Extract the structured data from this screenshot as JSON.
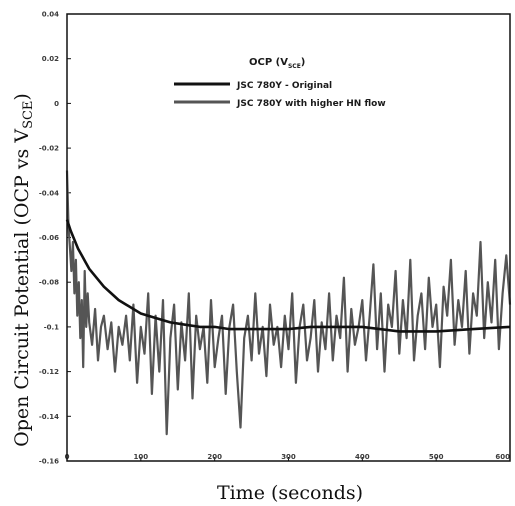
{
  "chart_data": {
    "type": "line",
    "title": "",
    "xlabel": "Time (seconds)",
    "ylabel": "Open Circuit Potential (OCP vs V",
    "ylabel_sub": "SCE",
    "ylabel_close": ")",
    "xlim": [
      0,
      600
    ],
    "ylim": [
      -0.16,
      0.04
    ],
    "x_ticks": [
      0,
      100,
      200,
      300,
      400,
      500,
      600
    ],
    "x_tick_labels": [
      "0",
      "100",
      "200",
      "300",
      "400",
      "500",
      "600"
    ],
    "y_ticks": [
      0.04,
      0.02,
      0,
      -0.02,
      -0.04,
      -0.06,
      -0.08,
      -0.1,
      -0.12,
      -0.14,
      -0.16
    ],
    "y_tick_labels": [
      "0.04",
      "0.02",
      "0",
      "-0.02",
      "-0.04",
      "-0.06",
      "-0.08",
      "-0.1",
      "-0.12",
      "-0.14",
      "-0.16"
    ],
    "grid": false,
    "legend": {
      "placement": "top-right",
      "title": "OCP (V",
      "title_sub": "SCE",
      "title_close": ")"
    },
    "series": [
      {
        "name": "JSC 780Y - Original",
        "color": "#111111",
        "x": [
          0,
          2,
          5,
          10,
          15,
          20,
          25,
          30,
          40,
          50,
          60,
          70,
          80,
          90,
          100,
          120,
          140,
          160,
          180,
          200,
          220,
          240,
          260,
          280,
          300,
          330,
          360,
          400,
          450,
          500,
          550,
          600
        ],
        "y": [
          -0.052,
          -0.054,
          -0.057,
          -0.061,
          -0.065,
          -0.068,
          -0.071,
          -0.074,
          -0.078,
          -0.082,
          -0.085,
          -0.088,
          -0.09,
          -0.092,
          -0.094,
          -0.096,
          -0.098,
          -0.099,
          -0.1,
          -0.1,
          -0.101,
          -0.101,
          -0.101,
          -0.101,
          -0.101,
          -0.1,
          -0.1,
          -0.1,
          -0.102,
          -0.102,
          -0.101,
          -0.1
        ]
      },
      {
        "name": "JSC 780Y with higher HN flow",
        "color": "#555555",
        "x": [
          0,
          2,
          4,
          6,
          8,
          10,
          12,
          14,
          16,
          18,
          20,
          22,
          24,
          26,
          28,
          30,
          34,
          38,
          42,
          46,
          50,
          55,
          60,
          65,
          70,
          75,
          80,
          85,
          90,
          95,
          100,
          105,
          110,
          115,
          120,
          125,
          130,
          135,
          140,
          145,
          150,
          155,
          160,
          165,
          170,
          175,
          180,
          185,
          190,
          195,
          200,
          205,
          210,
          215,
          220,
          225,
          230,
          235,
          240,
          245,
          250,
          255,
          260,
          265,
          270,
          275,
          280,
          285,
          290,
          295,
          300,
          305,
          310,
          315,
          320,
          325,
          330,
          335,
          340,
          345,
          350,
          355,
          360,
          365,
          370,
          375,
          380,
          385,
          390,
          395,
          400,
          405,
          410,
          415,
          420,
          425,
          430,
          435,
          440,
          445,
          450,
          455,
          460,
          465,
          470,
          475,
          480,
          485,
          490,
          495,
          500,
          505,
          510,
          515,
          520,
          525,
          530,
          535,
          540,
          545,
          550,
          555,
          560,
          565,
          570,
          575,
          580,
          585,
          590,
          595,
          600
        ],
        "y": [
          -0.03,
          -0.055,
          -0.065,
          -0.075,
          -0.062,
          -0.085,
          -0.07,
          -0.095,
          -0.08,
          -0.105,
          -0.088,
          -0.118,
          -0.075,
          -0.1,
          -0.085,
          -0.098,
          -0.108,
          -0.092,
          -0.115,
          -0.1,
          -0.095,
          -0.11,
          -0.098,
          -0.12,
          -0.1,
          -0.108,
          -0.095,
          -0.115,
          -0.09,
          -0.125,
          -0.1,
          -0.112,
          -0.085,
          -0.13,
          -0.095,
          -0.12,
          -0.088,
          -0.148,
          -0.105,
          -0.09,
          -0.128,
          -0.098,
          -0.115,
          -0.085,
          -0.132,
          -0.095,
          -0.11,
          -0.1,
          -0.125,
          -0.088,
          -0.118,
          -0.105,
          -0.095,
          -0.13,
          -0.1,
          -0.09,
          -0.12,
          -0.145,
          -0.105,
          -0.095,
          -0.115,
          -0.085,
          -0.112,
          -0.1,
          -0.122,
          -0.09,
          -0.108,
          -0.1,
          -0.118,
          -0.095,
          -0.11,
          -0.085,
          -0.125,
          -0.1,
          -0.09,
          -0.115,
          -0.105,
          -0.088,
          -0.12,
          -0.098,
          -0.11,
          -0.085,
          -0.115,
          -0.095,
          -0.105,
          -0.078,
          -0.12,
          -0.092,
          -0.108,
          -0.1,
          -0.088,
          -0.115,
          -0.095,
          -0.072,
          -0.11,
          -0.085,
          -0.12,
          -0.09,
          -0.1,
          -0.075,
          -0.112,
          -0.088,
          -0.105,
          -0.07,
          -0.115,
          -0.095,
          -0.085,
          -0.11,
          -0.078,
          -0.1,
          -0.09,
          -0.118,
          -0.082,
          -0.095,
          -0.07,
          -0.108,
          -0.088,
          -0.1,
          -0.075,
          -0.112,
          -0.085,
          -0.095,
          -0.062,
          -0.105,
          -0.08,
          -0.098,
          -0.07,
          -0.11,
          -0.085,
          -0.068,
          -0.09
        ]
      }
    ]
  }
}
